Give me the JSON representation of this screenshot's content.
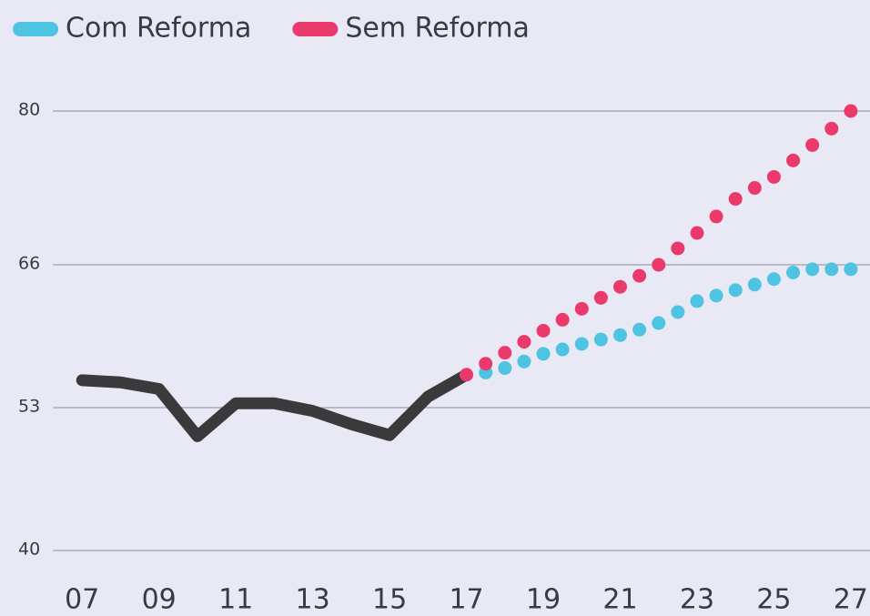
{
  "chart_data": {
    "type": "line",
    "xlim": [
      6,
      27.5
    ],
    "xticks": [
      {
        "value": 7,
        "label": "07"
      },
      {
        "value": 9,
        "label": "09"
      },
      11,
      13,
      15,
      17,
      19,
      21,
      23,
      25,
      27
    ],
    "ylim": [
      40,
      80
    ],
    "yticks": [
      40,
      53,
      66,
      80
    ],
    "grid": true,
    "legend": "top-left",
    "series": [
      {
        "color": "#3a3a3c",
        "style": "solid",
        "x": [
          7,
          8,
          9,
          10,
          11,
          12,
          13,
          14,
          15,
          16,
          17
        ],
        "values": [
          55.5,
          55.3,
          54.7,
          50.4,
          53.4,
          53.4,
          52.7,
          51.5,
          50.5,
          54,
          56
        ]
      },
      {
        "name": "Com Reforma",
        "color": "#4ec3e2",
        "style": "dotted",
        "x": [
          17.5,
          18,
          18.5,
          19,
          19.5,
          20,
          20.5,
          21,
          21.5,
          22,
          22.5,
          23,
          23.5,
          24,
          24.5,
          25,
          25.5,
          26,
          26.5,
          27
        ],
        "values": [
          56.2,
          56.6,
          57.2,
          57.9,
          58.3,
          58.8,
          59.2,
          59.6,
          60.1,
          60.7,
          61.7,
          62.7,
          63.2,
          63.7,
          64.2,
          64.7,
          65.3,
          65.6,
          65.6,
          65.6
        ]
      },
      {
        "name": "Sem Reforma",
        "color": "#ea3a6c",
        "style": "dotted",
        "x": [
          17,
          17.5,
          18,
          18.5,
          19,
          19.5,
          20,
          20.5,
          21,
          21.5,
          22,
          22.5,
          23,
          23.5,
          24,
          24.5,
          25,
          25.5,
          26,
          26.5,
          27
        ],
        "values": [
          56,
          57,
          58,
          59,
          60,
          61,
          62,
          63,
          64,
          65,
          66,
          67.5,
          68.9,
          70.4,
          72,
          73,
          74,
          75.5,
          76.9,
          78.4,
          80
        ]
      }
    ]
  }
}
